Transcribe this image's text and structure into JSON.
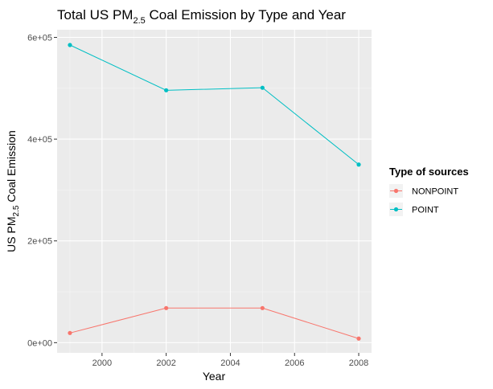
{
  "chart_data": {
    "type": "line",
    "title": {
      "prefix": "Total US PM",
      "subscript": "2.5",
      "suffix": " Coal Emission by Type and Year"
    },
    "xlabel": "Year",
    "ylabel": {
      "prefix": "US PM",
      "subscript": "2.5",
      "suffix": " Coal Emission"
    },
    "x": [
      1999,
      2002,
      2005,
      2008
    ],
    "xlim": [
      1998.6,
      2008.4
    ],
    "ylim": [
      -20000,
      615000
    ],
    "x_ticks": [
      2000,
      2002,
      2004,
      2006,
      2008
    ],
    "x_tick_labels": [
      "2000",
      "2002",
      "2004",
      "2006",
      "2008"
    ],
    "y_ticks": [
      0,
      200000,
      400000,
      600000
    ],
    "y_tick_labels": [
      "0e+00",
      "2e+05",
      "4e+05",
      "6e+05"
    ],
    "grid": true,
    "legend": {
      "title": "Type of sources",
      "placement": "right"
    },
    "series": [
      {
        "name": "NONPOINT",
        "color": "#F8766D",
        "values": [
          19000,
          68000,
          68000,
          8000
        ]
      },
      {
        "name": "POINT",
        "color": "#00BFC4",
        "values": [
          585000,
          496000,
          501000,
          350000
        ]
      }
    ]
  }
}
